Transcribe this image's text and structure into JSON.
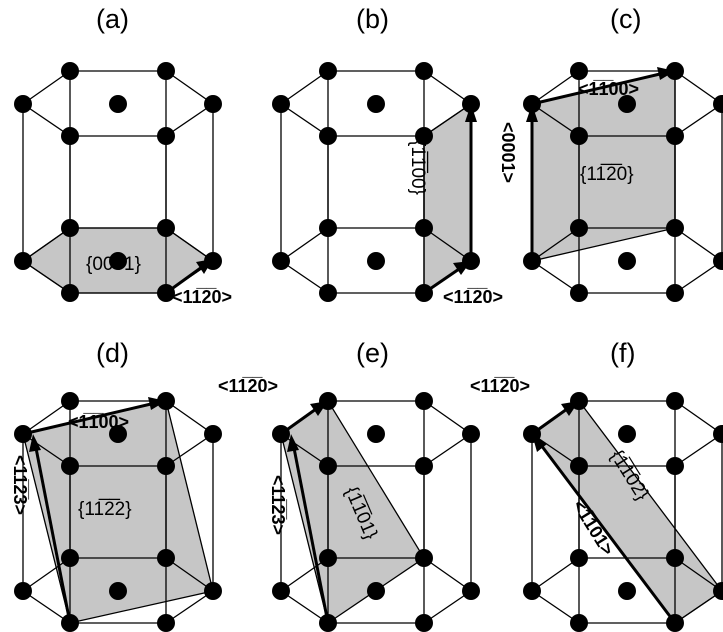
{
  "panels": [
    {
      "title": "(a)",
      "plane": "{0001}",
      "directions": [
        "<11̅2̅0>"
      ]
    },
    {
      "title": "(b)",
      "plane": "{11̅0 0}",
      "directions": [
        "<11̅2̅0>"
      ]
    },
    {
      "title": "(c)",
      "plane": "{112̅0}",
      "directions": [
        "<11̅0 0>",
        "<0001>"
      ]
    },
    {
      "title": "(d)",
      "plane": "{112̅2}",
      "directions": [
        "<11̅0 0>",
        "<112̅3>"
      ]
    },
    {
      "title": "(e)",
      "plane": "{11̅ 01}",
      "directions": [
        "<112̅0>",
        "<112̅3>"
      ]
    },
    {
      "title": "(f)",
      "plane": "{11̅ 02}",
      "directions": [
        "<112̅0>",
        "<11̅ 01>"
      ]
    }
  ],
  "text": {
    "a_title": "(a)",
    "b_title": "(b)",
    "c_title": "(c)",
    "d_title": "(d)",
    "e_title": "(e)",
    "f_title": "(f)",
    "a_plane": "{0001}",
    "a_dir": "<11̅2̅0>",
    "b_plane": "{1̅1̅00}",
    "b_dir": "<11̅2̅0>",
    "c_plane": "{11̅2̅0}",
    "c_dir1": "<1̅1̅00>",
    "c_dir2": "<0001>",
    "d_plane": "{11̅2̅2}",
    "d_dir1": "<1̅1̅00>",
    "d_dir2": "<11̅2̅3>",
    "e_plane": "{1̅1̅01}",
    "e_dir1": "<11̅2̅0>",
    "e_dir2": "<11̅2̅3>",
    "f_plane": "{1̅1̅02}",
    "f_dir1": "<11̅2̅0>",
    "f_dir2": "<1̅1̅01>"
  }
}
